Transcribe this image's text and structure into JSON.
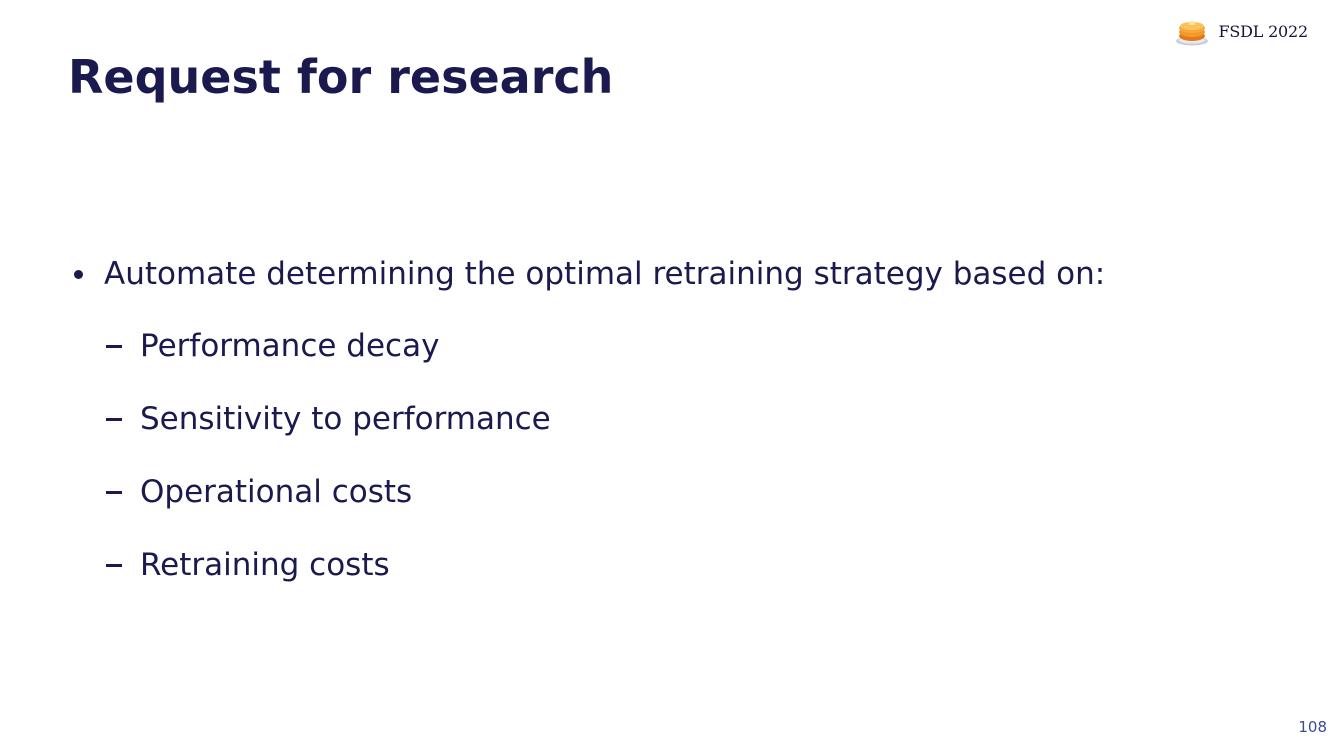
{
  "header": {
    "brand_text": "FSDL 2022",
    "brand_icon": "pancake-stack-icon"
  },
  "slide": {
    "title": "Request for research",
    "bullet": "Automate determining the optimal retraining strategy based on:",
    "sub_bullets": [
      "Performance decay",
      "Sensitivity to performance",
      "Operational costs",
      "Retraining costs"
    ]
  },
  "footer": {
    "page_number": "108"
  },
  "colors": {
    "title": "#1b1a4e",
    "text": "#1b1a4e",
    "page_number": "#3d4a9c",
    "background": "#ffffff"
  }
}
